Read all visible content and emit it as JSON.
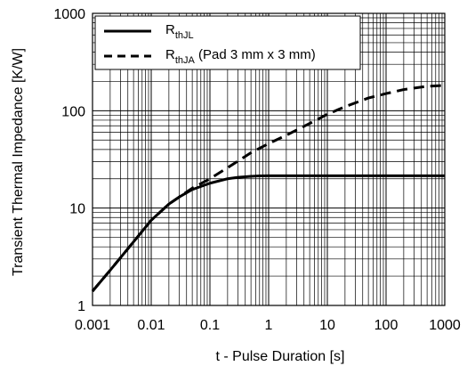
{
  "chart_data": {
    "type": "line",
    "title": "",
    "xlabel": "t - Pulse Duration [s]",
    "ylabel": "Transient Thermal Impedance [K/W]",
    "x_scale": "log",
    "y_scale": "log",
    "xlim": [
      0.001,
      1000
    ],
    "ylim": [
      1,
      1000
    ],
    "grid": true,
    "legend_position": "top-left",
    "x_ticks": [
      "0.001",
      "0.01",
      "0.1",
      "1",
      "10",
      "100",
      "1000"
    ],
    "y_ticks": [
      "1",
      "10",
      "100",
      "1000"
    ],
    "series": [
      {
        "name_main": "R",
        "name_sub": "thJL",
        "style": "solid",
        "x": [
          0.001,
          0.002,
          0.005,
          0.01,
          0.02,
          0.03,
          0.05,
          0.1,
          0.2,
          0.3,
          0.5,
          0.7,
          1,
          2,
          5,
          10,
          100,
          1000
        ],
        "y": [
          1.4,
          2.3,
          4.5,
          7.5,
          11,
          13,
          15.5,
          18,
          20,
          20.7,
          21.2,
          21.4,
          21.5,
          21.5,
          21.5,
          21.5,
          21.5,
          21.5
        ]
      },
      {
        "name_main": "R",
        "name_sub": "thJA",
        "name_suffix": " (Pad 3 mm x 3 mm)",
        "style": "dashed",
        "x": [
          0.001,
          0.002,
          0.005,
          0.01,
          0.02,
          0.03,
          0.05,
          0.1,
          0.2,
          0.5,
          1,
          2,
          5,
          10,
          20,
          50,
          100,
          200,
          500,
          1000
        ],
        "y": [
          1.4,
          2.3,
          4.5,
          7.5,
          11,
          13,
          16,
          20,
          26,
          37,
          46,
          56,
          74,
          92,
          110,
          135,
          150,
          165,
          178,
          182
        ]
      }
    ]
  }
}
